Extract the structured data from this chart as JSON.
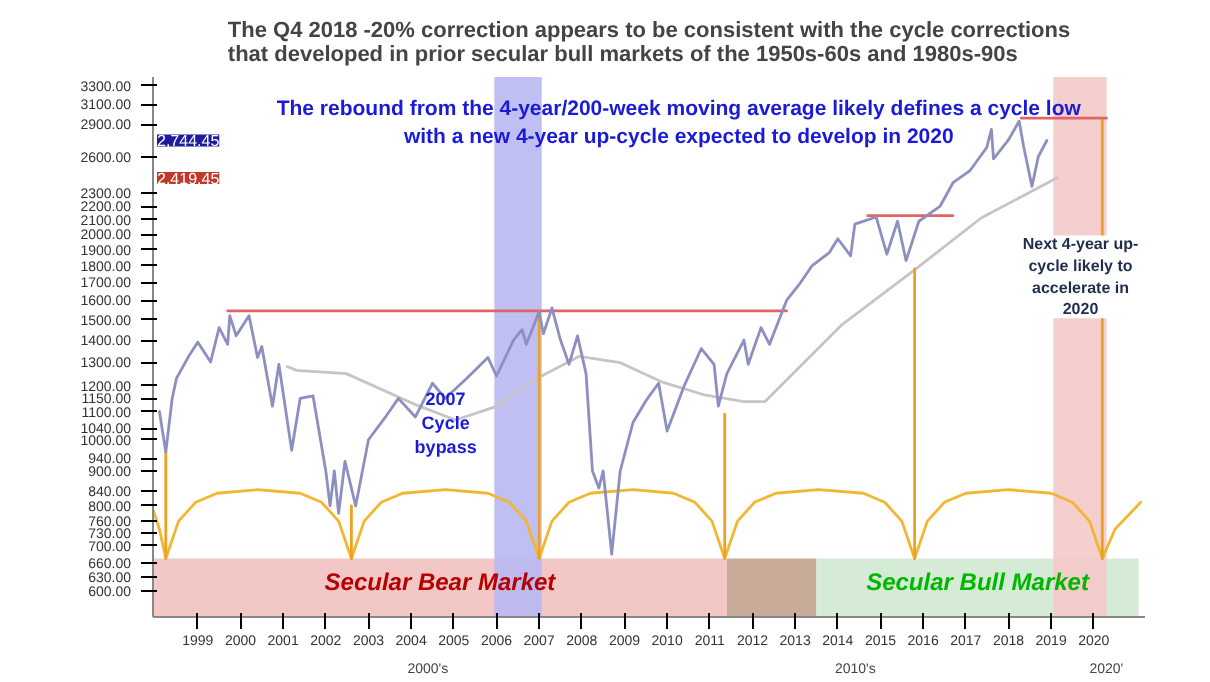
{
  "chart_data": {
    "type": "line",
    "title": "The Q4 2018 -20% correction appears to be consistent with the cycle corrections\nthat developed in prior secular bull markets of the 1950s-60s and 1980s-90s",
    "log": "y",
    "tick_labels": "xy",
    "grid": false,
    "xlim": [
      1998.45,
      2021.7
    ],
    "ylim": [
      550,
      3400
    ],
    "xticks": [
      {
        "value": 1999.5,
        "label": "1999"
      },
      {
        "value": 2000.5,
        "label": "2000"
      },
      {
        "value": 2001.5,
        "label": "2001"
      },
      {
        "value": 2002.5,
        "label": "2002"
      },
      {
        "value": 2003.5,
        "label": "2003"
      },
      {
        "value": 2004.5,
        "label": "2004"
      },
      {
        "value": 2005.5,
        "label": "2005"
      },
      {
        "value": 2006.5,
        "label": "2006"
      },
      {
        "value": 2007.5,
        "label": "2007"
      },
      {
        "value": 2008.5,
        "label": "2008"
      },
      {
        "value": 2009.5,
        "label": "2009"
      },
      {
        "value": 2010.5,
        "label": "2010"
      },
      {
        "value": 2011.5,
        "label": "2011"
      },
      {
        "value": 2012.5,
        "label": "2012"
      },
      {
        "value": 2013.5,
        "label": "2013"
      },
      {
        "value": 2014.5,
        "label": "2014"
      },
      {
        "value": 2015.5,
        "label": "2015"
      },
      {
        "value": 2016.5,
        "label": "2016"
      },
      {
        "value": 2017.5,
        "label": "2017"
      },
      {
        "value": 2018.5,
        "label": "2018"
      },
      {
        "value": 2019.5,
        "label": "2019"
      },
      {
        "value": 2020.5,
        "label": "2020"
      }
    ],
    "yticks": [
      {
        "value": 3300,
        "label": "3300.00"
      },
      {
        "value": 3100,
        "label": "3100.00"
      },
      {
        "value": 2900,
        "label": "2900.00"
      },
      {
        "value": 2600,
        "label": "2600.00"
      },
      {
        "value": 2300,
        "label": "2300.00"
      },
      {
        "value": 2200,
        "label": "2200.00"
      },
      {
        "value": 2100,
        "label": "2100.00"
      },
      {
        "value": 2000,
        "label": "2000.00"
      },
      {
        "value": 1900,
        "label": "1900.00"
      },
      {
        "value": 1800,
        "label": "1800.00"
      },
      {
        "value": 1700,
        "label": "1700.00"
      },
      {
        "value": 1600,
        "label": "1600.00"
      },
      {
        "value": 1500,
        "label": "1500.00"
      },
      {
        "value": 1400,
        "label": "1400.00"
      },
      {
        "value": 1300,
        "label": "1300.00"
      },
      {
        "value": 1200,
        "label": "1200.00"
      },
      {
        "value": 1150,
        "label": "1150.00"
      },
      {
        "value": 1100,
        "label": "1100.00"
      },
      {
        "value": 1040,
        "label": "1040.00"
      },
      {
        "value": 1000,
        "label": "1000.00"
      },
      {
        "value": 940,
        "label": "940.00"
      },
      {
        "value": 900,
        "label": "900.00"
      },
      {
        "value": 840,
        "label": "840.00"
      },
      {
        "value": 800,
        "label": "800.00"
      },
      {
        "value": 760,
        "label": "760.00"
      },
      {
        "value": 730,
        "label": "730.00"
      },
      {
        "value": 700,
        "label": "700.00"
      },
      {
        "value": 660,
        "label": "660.00"
      },
      {
        "value": 630,
        "label": "630.00"
      },
      {
        "value": 600,
        "label": "600.00"
      }
    ],
    "bands": [
      {
        "axis": "x",
        "from": 2006.45,
        "to": 2007.56,
        "color": "#b8b8f2"
      },
      {
        "axis": "x",
        "from": 2019.55,
        "to": 2020.8,
        "color": "#f4c9c9"
      }
    ],
    "series": [
      {
        "name": "Secular Bear Market",
        "type": "area",
        "color": "#f4c7c7",
        "x": [
          1998.45,
          2011.9
        ],
        "values": [
          670,
          670
        ]
      },
      {
        "type": "area",
        "color": "#c9ab9a",
        "x": [
          2011.9,
          2014.0
        ],
        "values": [
          670,
          670
        ]
      },
      {
        "name": "Secular Bull Market",
        "type": "area",
        "color": "#d5ebd5",
        "x": [
          2014.0,
          2021.55
        ],
        "values": [
          670,
          670
        ]
      },
      {
        "type": "line",
        "color": "#c8c4c4",
        "x": [
          2001.6,
          2001.82,
          2002.98,
          2004.57,
          2005.54,
          2006.5,
          2007.47,
          2008.44,
          2009.4,
          2010.37,
          2011.34,
          2012.3,
          2012.79,
          2014.6,
          2016.2,
          2017.86,
          2019.64
        ],
        "values": [
          1280,
          1264,
          1250,
          1128,
          1069,
          1119,
          1232,
          1325,
          1297,
          1216,
          1165,
          1137,
          1137,
          1475,
          1754,
          2113,
          2419.45
        ]
      },
      {
        "type": "line",
        "color": "#f2b632",
        "x": [
          1998.45,
          1998.6,
          1998.75,
          1999.05,
          1999.45,
          1999.95,
          2000.9,
          2001.9,
          2002.4,
          2002.8,
          2003.1,
          2003.4,
          2003.8,
          2004.3,
          2005.3,
          2006.3,
          2006.8,
          2007.2,
          2007.5,
          2007.8,
          2008.2,
          2008.7,
          2009.7,
          2010.65,
          2011.15,
          2011.55,
          2011.85,
          2012.15,
          2012.55,
          2013.05,
          2014.05,
          2015.1,
          2015.6,
          2016.0,
          2016.3,
          2016.6,
          2017.0,
          2017.5,
          2018.5,
          2019.5,
          2020.0,
          2020.4,
          2020.7,
          2021.0,
          2021.6
        ],
        "values": [
          790,
          740,
          670,
          760,
          810,
          835,
          845,
          835,
          810,
          760,
          670,
          760,
          810,
          835,
          845,
          835,
          810,
          760,
          670,
          760,
          810,
          835,
          845,
          835,
          810,
          760,
          670,
          760,
          810,
          835,
          845,
          835,
          810,
          760,
          670,
          760,
          810,
          835,
          845,
          835,
          810,
          760,
          670,
          740,
          810
        ]
      },
      {
        "type": "line",
        "color": "#f0a020",
        "x": [
          1998.75,
          1998.75
        ],
        "values": [
          670,
          960
        ]
      },
      {
        "type": "line",
        "color": "#f0a020",
        "x": [
          2003.1,
          2003.1
        ],
        "values": [
          670,
          800
        ]
      },
      {
        "type": "line",
        "color": "#f0a020",
        "x": [
          2007.5,
          2007.5
        ],
        "values": [
          670,
          1545
        ]
      },
      {
        "type": "line",
        "color": "#f0a020",
        "x": [
          2011.85,
          2011.85
        ],
        "values": [
          670,
          1090
        ]
      },
      {
        "type": "line",
        "color": "#f0a020",
        "x": [
          2016.3,
          2016.3
        ],
        "values": [
          670,
          1780
        ]
      },
      {
        "type": "line",
        "color": "#f0a020",
        "x": [
          2020.7,
          2020.7
        ],
        "values": [
          670,
          2960
        ]
      },
      {
        "type": "line",
        "color": "#e06666",
        "x": [
          2000.2,
          2013.3
        ],
        "values": [
          1545,
          1545
        ]
      },
      {
        "type": "line",
        "color": "#e06666",
        "x": [
          2015.2,
          2017.2
        ],
        "values": [
          2130,
          2130
        ]
      },
      {
        "type": "line",
        "color": "#e06666",
        "x": [
          2018.8,
          2020.8
        ],
        "values": [
          2960,
          2960
        ]
      },
      {
        "type": "line",
        "color": "#8c8fc0",
        "x": [
          1998.6,
          1998.75,
          1998.9,
          1999.0,
          1999.3,
          1999.5,
          1999.8,
          2000.0,
          2000.2,
          2000.25,
          2000.4,
          2000.7,
          2000.9,
          2001.0,
          2001.25,
          2001.4,
          2001.7,
          2001.9,
          2002.2,
          2002.5,
          2002.6,
          2002.7,
          2002.8,
          2002.95,
          2003.2,
          2003.5,
          2003.9,
          2004.2,
          2004.6,
          2005.0,
          2005.3,
          2005.8,
          2006.3,
          2006.5,
          2006.9,
          2007.1,
          2007.2,
          2007.5,
          2007.6,
          2007.8,
          2008.0,
          2008.2,
          2008.4,
          2008.6,
          2008.75,
          2008.9,
          2009.0,
          2009.2,
          2009.4,
          2009.7,
          2010.0,
          2010.3,
          2010.5,
          2010.9,
          2011.3,
          2011.6,
          2011.7,
          2011.9,
          2012.3,
          2012.4,
          2012.7,
          2012.9,
          2013.3,
          2013.6,
          2013.9,
          2014.3,
          2014.5,
          2014.8,
          2014.9,
          2015.4,
          2015.65,
          2015.9,
          2016.1,
          2016.4,
          2016.9,
          2017.2,
          2017.6,
          2017.99,
          2018.1,
          2018.15,
          2018.5,
          2018.75,
          2018.85,
          2019.05,
          2019.2,
          2019.4
        ],
        "values": [
          1100,
          960,
          1150,
          1230,
          1330,
          1390,
          1300,
          1460,
          1380,
          1520,
          1420,
          1520,
          1320,
          1370,
          1120,
          1290,
          965,
          1150,
          1160,
          900,
          800,
          900,
          780,
          930,
          800,
          1000,
          1080,
          1150,
          1080,
          1210,
          1150,
          1230,
          1320,
          1240,
          1400,
          1450,
          1380,
          1540,
          1430,
          1560,
          1400,
          1290,
          1420,
          1250,
          900,
          850,
          900,
          680,
          900,
          1060,
          1140,
          1210,
          1030,
          1200,
          1360,
          1290,
          1120,
          1250,
          1400,
          1290,
          1460,
          1380,
          1600,
          1690,
          1800,
          1880,
          1970,
          1860,
          2070,
          2120,
          1870,
          2090,
          1830,
          2090,
          2200,
          2380,
          2480,
          2680,
          2850,
          2580,
          2750,
          2930,
          2700,
          2350,
          2600,
          2744.45
        ]
      }
    ],
    "annotations": [
      "The rebound from the 4-year/200-week moving average likely defines a cycle low\nwith a new 4-year up-cycle expected to develop in 2020",
      "2007\nCycle\nbypass",
      "Next 4-year up-\ncycle likely to\naccelerate in\n2020",
      "2000's",
      "2010's",
      "2020'",
      "2,744.45",
      "2,419.45"
    ]
  }
}
